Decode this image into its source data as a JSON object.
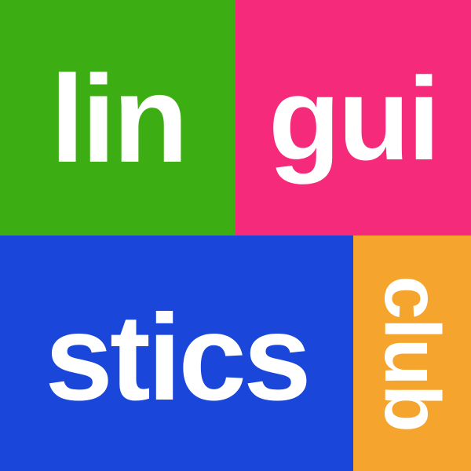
{
  "logo": {
    "tiles": [
      {
        "text": "lin",
        "color": "#3cad12"
      },
      {
        "text": "gui",
        "color": "#f52a7a"
      },
      {
        "text": "stics",
        "color": "#1a47d9"
      },
      {
        "text": "club",
        "color": "#f5a52d"
      }
    ],
    "text_color": "#ffffff"
  }
}
